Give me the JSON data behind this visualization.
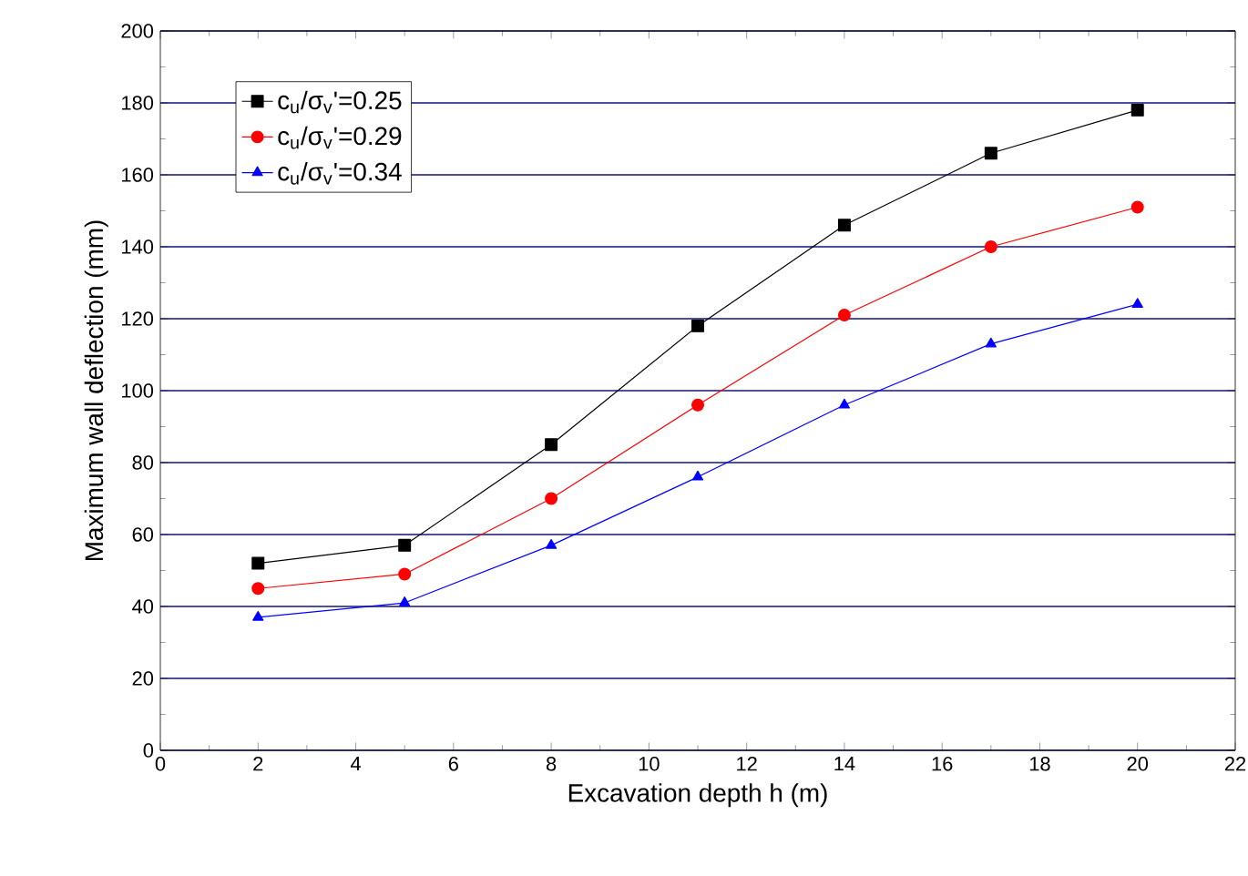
{
  "chart_data": {
    "type": "line",
    "xlabel": "Excavation depth  h (m)",
    "ylabel": "Maximum wall deflection (mm)",
    "x": [
      2,
      5,
      8,
      11,
      14,
      17,
      20
    ],
    "series": [
      {
        "name": "c$_{u}$/σ$_{v}$'=0.25",
        "color": "#000000",
        "marker": "square",
        "values": [
          52,
          57,
          85,
          118,
          146,
          166,
          178
        ]
      },
      {
        "name": "c$_{u}$/σ$_{v}$'=0.29",
        "color": "#ff0000",
        "marker": "circle",
        "values": [
          45,
          49,
          70,
          96,
          121,
          140,
          151
        ]
      },
      {
        "name": "c$_{u}$/σ$_{v}$'=0.34",
        "color": "#0000ff",
        "marker": "triangle",
        "values": [
          37,
          41,
          57,
          76,
          96,
          113,
          124
        ]
      }
    ],
    "xlim": [
      0,
      22
    ],
    "xticks": [
      0,
      2,
      4,
      6,
      8,
      10,
      12,
      14,
      16,
      18,
      20,
      22
    ],
    "ylim": [
      0,
      200
    ],
    "yticks": [
      0,
      20,
      40,
      60,
      80,
      100,
      120,
      140,
      160,
      180,
      200
    ],
    "grid": "y",
    "legend": "top left",
    "line_style": "solid"
  }
}
